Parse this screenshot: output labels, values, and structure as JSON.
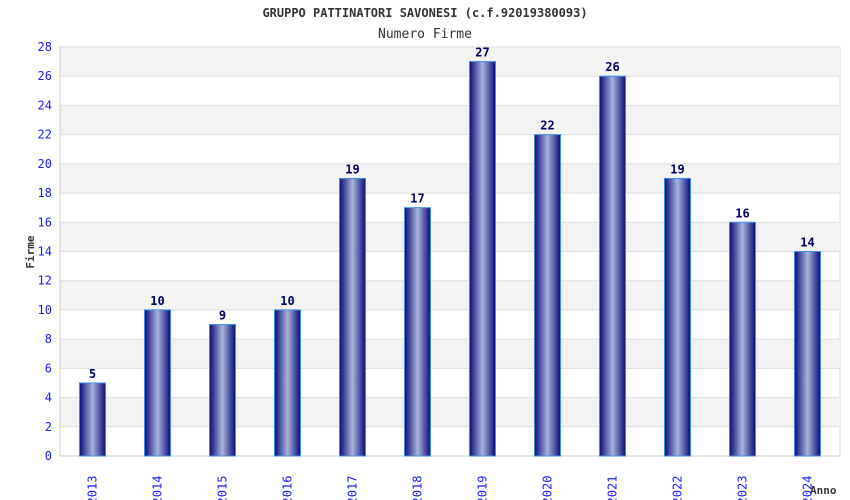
{
  "chart_data": {
    "type": "bar",
    "title": "GRUPPO PATTINATORI SAVONESI (c.f.92019380093)",
    "subtitle": "Numero Firme",
    "xlabel": "Anno",
    "ylabel": "Firme",
    "categories": [
      "2013",
      "2014",
      "2015",
      "2016",
      "2017",
      "2018",
      "2019",
      "2020",
      "2021",
      "2022",
      "2023",
      "2024"
    ],
    "values": [
      5,
      10,
      9,
      10,
      19,
      17,
      27,
      22,
      26,
      19,
      16,
      14
    ],
    "ylim": [
      0,
      28
    ],
    "yticks": [
      0,
      2,
      4,
      6,
      8,
      10,
      12,
      14,
      16,
      18,
      20,
      22,
      24,
      26,
      28
    ],
    "grid": true,
    "colors": {
      "bar_dark": "#0a0a78",
      "bar_light": "#a8b4dc",
      "bar_border": "#3a8ee6",
      "tick": "#1a1aff",
      "label": "#000066"
    }
  }
}
